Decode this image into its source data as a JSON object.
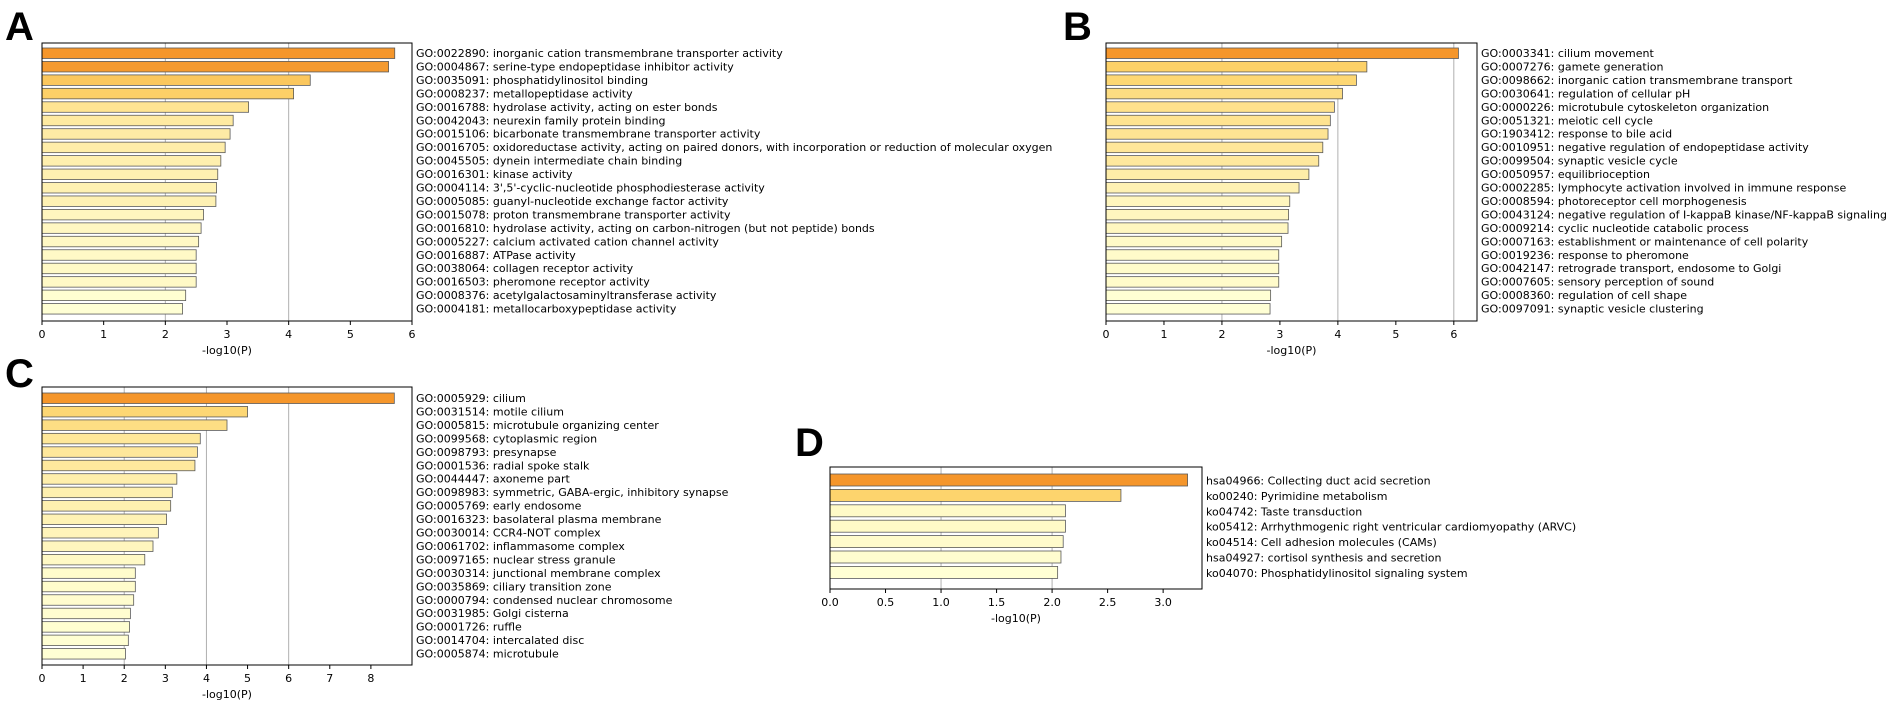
{
  "colors": {
    "low": "#ffffd4",
    "mid": "#fdd36a",
    "high": "#f5962b",
    "edge": "#5a5a5a",
    "grid": "#b0b0b0"
  },
  "chart_data": [
    {
      "panel": "A",
      "type": "bar",
      "orientation": "horizontal",
      "xlabel": "-log10(P)",
      "xlim": [
        0,
        6
      ],
      "xticks": [
        "0",
        "1",
        "2",
        "3",
        "4",
        "5",
        "6"
      ],
      "grid": "vertical at 2, 4",
      "categories": [
        "GO:0022890: inorganic cation transmembrane transporter activity",
        "GO:0004867: serine-type endopeptidase inhibitor activity",
        "GO:0035091: phosphatidylinositol binding",
        "GO:0008237: metallopeptidase activity",
        "GO:0016788: hydrolase activity, acting on ester bonds",
        "GO:0042043: neurexin family protein binding",
        "GO:0015106: bicarbonate transmembrane transporter activity",
        "GO:0016705: oxidoreductase activity, acting on paired donors, with incorporation or reduction of molecular oxygen",
        "GO:0045505: dynein intermediate chain binding",
        "GO:0016301: kinase activity",
        "GO:0004114: 3',5'-cyclic-nucleotide phosphodiesterase activity",
        "GO:0005085: guanyl-nucleotide exchange factor activity",
        "GO:0015078: proton transmembrane transporter activity",
        "GO:0016810: hydrolase activity, acting on carbon-nitrogen (but not peptide) bonds",
        "GO:0005227: calcium activated cation channel activity",
        "GO:0016887: ATPase activity",
        "GO:0038064: collagen receptor activity",
        "GO:0016503: pheromone receptor activity",
        "GO:0008376: acetylgalactosaminyltransferase activity",
        "GO:0004181: metallocarboxypeptidase activity"
      ],
      "values": [
        5.72,
        5.62,
        4.35,
        4.08,
        3.35,
        3.1,
        3.05,
        2.97,
        2.9,
        2.85,
        2.83,
        2.82,
        2.62,
        2.58,
        2.54,
        2.5,
        2.5,
        2.5,
        2.33,
        2.28
      ]
    },
    {
      "panel": "B",
      "type": "bar",
      "orientation": "horizontal",
      "xlabel": "-log10(P)",
      "xlim": [
        0,
        6.4
      ],
      "xticks": [
        "0",
        "1",
        "2",
        "3",
        "4",
        "5",
        "6"
      ],
      "grid": "vertical at 2, 4, 6",
      "categories": [
        "GO:0003341: cilium movement",
        "GO:0007276: gamete generation",
        "GO:0098662: inorganic cation transmembrane transport",
        "GO:0030641: regulation of cellular pH",
        "GO:0000226: microtubule cytoskeleton organization",
        "GO:0051321: meiotic cell cycle",
        "GO:1903412: response to bile acid",
        "GO:0010951: negative regulation of endopeptidase activity",
        "GO:0099504: synaptic vesicle cycle",
        "GO:0050957: equilibrioception",
        "GO:0002285: lymphocyte activation involved in immune response",
        "GO:0008594: photoreceptor cell morphogenesis",
        "GO:0043124: negative regulation of I-kappaB kinase/NF-kappaB signaling",
        "GO:0009214: cyclic nucleotide catabolic process",
        "GO:0007163: establishment or maintenance of cell polarity",
        "GO:0019236: response to pheromone",
        "GO:0042147: retrograde transport, endosome to Golgi",
        "GO:0007605: sensory perception of sound",
        "GO:0008360: regulation of cell shape",
        "GO:0097091: synaptic vesicle clustering"
      ],
      "values": [
        6.08,
        4.5,
        4.32,
        4.08,
        3.94,
        3.87,
        3.83,
        3.74,
        3.67,
        3.5,
        3.33,
        3.17,
        3.15,
        3.14,
        3.03,
        2.98,
        2.98,
        2.98,
        2.84,
        2.83
      ]
    },
    {
      "panel": "C",
      "type": "bar",
      "orientation": "horizontal",
      "xlabel": "-log10(P)",
      "xlim": [
        0,
        9
      ],
      "xticks": [
        "0",
        "1",
        "2",
        "3",
        "4",
        "5",
        "6",
        "7",
        "8"
      ],
      "grid": "vertical at 2, 4, 6",
      "categories": [
        "GO:0005929: cilium",
        "GO:0031514: motile cilium",
        "GO:0005815: microtubule organizing center",
        "GO:0099568: cytoplasmic region",
        "GO:0098793: presynapse",
        "GO:0001536: radial spoke stalk",
        "GO:0044447: axoneme part",
        "GO:0098983: symmetric, GABA-ergic, inhibitory synapse",
        "GO:0005769: early endosome",
        "GO:0016323: basolateral plasma membrane",
        "GO:0030014: CCR4-NOT complex",
        "GO:0061702: inflammasome complex",
        "GO:0097165: nuclear stress granule",
        "GO:0030314: junctional membrane complex",
        "GO:0035869: ciliary transition zone",
        "GO:0000794: condensed nuclear chromosome",
        "GO:0031985: Golgi cisterna",
        "GO:0001726: ruffle",
        "GO:0014704: intercalated disc",
        "GO:0005874: microtubule"
      ],
      "values": [
        8.57,
        5.0,
        4.5,
        3.85,
        3.78,
        3.72,
        3.28,
        3.17,
        3.13,
        3.03,
        2.83,
        2.7,
        2.5,
        2.27,
        2.27,
        2.23,
        2.15,
        2.13,
        2.1,
        2.03
      ]
    },
    {
      "panel": "D",
      "type": "bar",
      "orientation": "horizontal",
      "xlabel": "-log10(P)",
      "xlim": [
        0,
        3.35
      ],
      "xticks": [
        "0.0",
        "0.5",
        "1.0",
        "1.5",
        "2.0",
        "2.5",
        "3.0"
      ],
      "grid": "vertical at 1.0, 2.0",
      "categories": [
        "hsa04966: Collecting duct acid secretion",
        "ko00240: Pyrimidine metabolism",
        "ko04742: Taste transduction",
        "ko05412: Arrhythmogenic right ventricular cardiomyopathy (ARVC)",
        "ko04514: Cell adhesion molecules (CAMs)",
        "hsa04927: cortisol synthesis and secretion",
        "ko04070: Phosphatidylinositol signaling system"
      ],
      "values": [
        3.22,
        2.62,
        2.12,
        2.12,
        2.1,
        2.08,
        2.05
      ]
    }
  ]
}
